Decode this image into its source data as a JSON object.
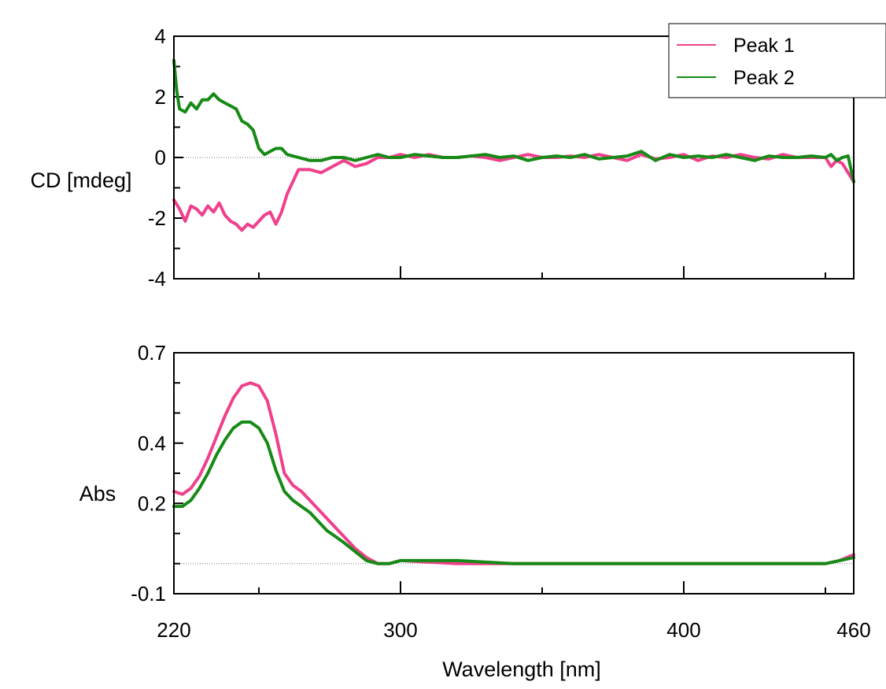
{
  "chart_data": [
    {
      "type": "line",
      "ylabel": "CD [mdeg]",
      "xlabel": "",
      "xlim": [
        220,
        460
      ],
      "ylim": [
        -4,
        4
      ],
      "x_ticks": [
        220,
        300,
        400,
        460
      ],
      "x_minor_ticks": [
        250,
        350,
        450
      ],
      "y_ticks": [
        "4",
        "2",
        "0",
        "-2",
        "-4"
      ],
      "y_tick_values": [
        4,
        2,
        0,
        -2,
        -4
      ],
      "y_minor_ticks": [
        3,
        1,
        -1,
        -3
      ],
      "grid": false,
      "zero_line": true,
      "legend": {
        "position": "top-right"
      },
      "series": [
        {
          "name": "Peak 1",
          "color": "#f0408c",
          "x": [
            220,
            222,
            224,
            226,
            228,
            230,
            232,
            234,
            236,
            238,
            240,
            242,
            244,
            246,
            248,
            250,
            252,
            254,
            256,
            258,
            260,
            264,
            268,
            272,
            276,
            280,
            284,
            288,
            292,
            296,
            300,
            305,
            310,
            315,
            320,
            325,
            330,
            335,
            340,
            345,
            350,
            355,
            360,
            365,
            370,
            375,
            380,
            385,
            390,
            395,
            400,
            405,
            410,
            415,
            420,
            425,
            430,
            435,
            440,
            445,
            450,
            452,
            454,
            456,
            458,
            460
          ],
          "y": [
            -1.4,
            -1.7,
            -2.1,
            -1.6,
            -1.7,
            -1.9,
            -1.6,
            -1.8,
            -1.5,
            -1.9,
            -2.1,
            -2.2,
            -2.4,
            -2.2,
            -2.3,
            -2.1,
            -1.9,
            -1.8,
            -2.2,
            -1.8,
            -1.2,
            -0.4,
            -0.4,
            -0.5,
            -0.3,
            -0.1,
            -0.3,
            -0.2,
            0.0,
            0.0,
            0.1,
            0.0,
            0.1,
            0.0,
            0.0,
            0.05,
            0.0,
            -0.1,
            0.0,
            0.1,
            0.0,
            0.0,
            0.05,
            0.0,
            0.1,
            0.0,
            -0.1,
            0.1,
            -0.05,
            0.0,
            0.1,
            -0.1,
            0.05,
            0.0,
            0.1,
            0.0,
            -0.05,
            0.1,
            0.0,
            0.0,
            0.0,
            -0.3,
            -0.1,
            -0.2,
            -0.5,
            -0.8
          ]
        },
        {
          "name": "Peak 2",
          "color": "#168a16",
          "x": [
            220,
            221,
            222,
            224,
            226,
            228,
            230,
            232,
            234,
            236,
            238,
            240,
            242,
            244,
            246,
            248,
            250,
            252,
            254,
            256,
            258,
            260,
            264,
            268,
            272,
            276,
            280,
            284,
            288,
            292,
            296,
            300,
            305,
            310,
            315,
            320,
            325,
            330,
            335,
            340,
            345,
            350,
            355,
            360,
            365,
            370,
            375,
            380,
            385,
            390,
            395,
            400,
            405,
            410,
            415,
            420,
            425,
            430,
            435,
            440,
            445,
            450,
            452,
            454,
            456,
            458,
            460
          ],
          "y": [
            3.2,
            2.2,
            1.6,
            1.5,
            1.8,
            1.6,
            1.9,
            1.9,
            2.1,
            1.9,
            1.8,
            1.7,
            1.6,
            1.2,
            1.1,
            0.9,
            0.3,
            0.1,
            0.2,
            0.3,
            0.3,
            0.1,
            0.0,
            -0.1,
            -0.1,
            0.0,
            0.0,
            -0.1,
            0.0,
            0.1,
            0.0,
            0.0,
            0.1,
            0.05,
            0.0,
            0.0,
            0.05,
            0.1,
            0.0,
            0.05,
            -0.1,
            0.0,
            0.05,
            0.0,
            0.1,
            -0.05,
            0.0,
            0.05,
            0.2,
            -0.1,
            0.1,
            0.0,
            0.05,
            0.0,
            0.1,
            0.0,
            -0.1,
            0.05,
            0.0,
            0.0,
            0.05,
            0.0,
            0.1,
            -0.1,
            0.0,
            0.05,
            -0.8
          ]
        }
      ]
    },
    {
      "type": "line",
      "ylabel": "Abs",
      "xlabel": "Wavelength [nm]",
      "xlim": [
        220,
        460
      ],
      "ylim": [
        -0.1,
        0.7
      ],
      "x_ticks": [
        220,
        300,
        400,
        460
      ],
      "x_tick_labels": [
        "220",
        "300",
        "400",
        "460"
      ],
      "x_minor_ticks": [
        250,
        350,
        450
      ],
      "y_ticks": [
        "0.7",
        "0.4",
        "0.2",
        "-0.1"
      ],
      "y_tick_values": [
        0.7,
        0.4,
        0.2,
        -0.1
      ],
      "y_minor_ticks": [
        0.6,
        0.5,
        0.3,
        0.1,
        0.0
      ],
      "grid": false,
      "zero_line": true,
      "series": [
        {
          "name": "Peak 1",
          "color": "#f0408c",
          "x": [
            220,
            223,
            226,
            229,
            232,
            235,
            238,
            241,
            244,
            247,
            250,
            253,
            256,
            259,
            262,
            265,
            268,
            271,
            274,
            277,
            280,
            284,
            288,
            292,
            296,
            300,
            320,
            340,
            360,
            380,
            400,
            420,
            440,
            450,
            455,
            460
          ],
          "y": [
            0.24,
            0.23,
            0.25,
            0.29,
            0.35,
            0.42,
            0.49,
            0.55,
            0.59,
            0.6,
            0.59,
            0.54,
            0.43,
            0.3,
            0.26,
            0.24,
            0.21,
            0.18,
            0.15,
            0.12,
            0.09,
            0.05,
            0.02,
            0.0,
            0.0,
            0.01,
            0.0,
            0.0,
            0.0,
            0.0,
            0.0,
            0.0,
            0.0,
            0.0,
            0.01,
            0.03
          ]
        },
        {
          "name": "Peak 2",
          "color": "#168a16",
          "x": [
            220,
            223,
            226,
            229,
            232,
            235,
            238,
            241,
            244,
            247,
            250,
            253,
            256,
            259,
            262,
            265,
            268,
            271,
            274,
            277,
            280,
            284,
            288,
            292,
            296,
            300,
            320,
            340,
            360,
            380,
            400,
            420,
            440,
            450,
            455,
            460
          ],
          "y": [
            0.19,
            0.19,
            0.21,
            0.25,
            0.3,
            0.36,
            0.41,
            0.45,
            0.47,
            0.47,
            0.45,
            0.4,
            0.31,
            0.24,
            0.21,
            0.19,
            0.17,
            0.14,
            0.11,
            0.09,
            0.07,
            0.04,
            0.01,
            0.0,
            0.0,
            0.01,
            0.01,
            0.0,
            0.0,
            0.0,
            0.0,
            0.0,
            0.0,
            0.0,
            0.01,
            0.02
          ]
        }
      ]
    }
  ]
}
